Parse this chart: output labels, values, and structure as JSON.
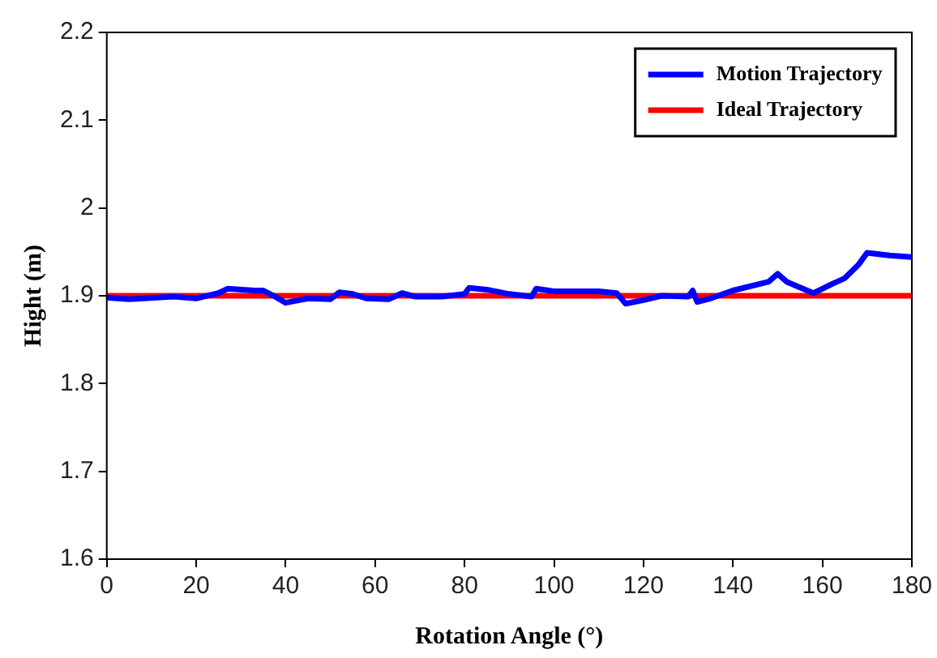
{
  "chart_data": {
    "type": "line",
    "xlabel": "Rotation Angle (°)",
    "ylabel": "Hight (m)",
    "xlim": [
      0,
      180
    ],
    "xticks": [
      0,
      20,
      40,
      60,
      80,
      100,
      120,
      140,
      160,
      180
    ],
    "ylim": [
      1.6,
      2.2
    ],
    "yticks": [
      1.6,
      1.7,
      1.8,
      1.9,
      2,
      2.1,
      2.2
    ],
    "grid": false,
    "legend": "top right",
    "marker": "none",
    "line_style": "solid",
    "series": [
      {
        "name": "Motion Trajectory",
        "color": "#0000ff",
        "x": [
          0,
          5,
          15,
          20,
          25,
          27,
          33,
          35,
          38,
          40,
          45,
          50,
          52,
          55,
          58,
          63,
          66,
          69,
          75,
          80,
          81,
          85,
          90,
          95,
          96,
          100,
          110,
          114,
          116,
          120,
          124,
          130,
          131,
          132,
          135,
          140,
          148,
          150,
          152,
          158,
          162,
          165,
          168,
          170,
          175,
          180
        ],
        "values": [
          1.898,
          1.896,
          1.899,
          1.897,
          1.903,
          1.908,
          1.906,
          1.906,
          1.898,
          1.892,
          1.897,
          1.896,
          1.904,
          1.902,
          1.897,
          1.896,
          1.903,
          1.899,
          1.899,
          1.902,
          1.909,
          1.907,
          1.902,
          1.899,
          1.908,
          1.905,
          1.905,
          1.903,
          1.891,
          1.895,
          1.9,
          1.899,
          1.906,
          1.893,
          1.897,
          1.906,
          1.916,
          1.925,
          1.916,
          1.903,
          1.913,
          1.92,
          1.935,
          1.949,
          1.946,
          1.944
        ]
      },
      {
        "name": "Ideal Trajectory",
        "color": "#ff0000",
        "x": [
          0,
          180
        ],
        "values": [
          1.9,
          1.9
        ]
      }
    ]
  }
}
